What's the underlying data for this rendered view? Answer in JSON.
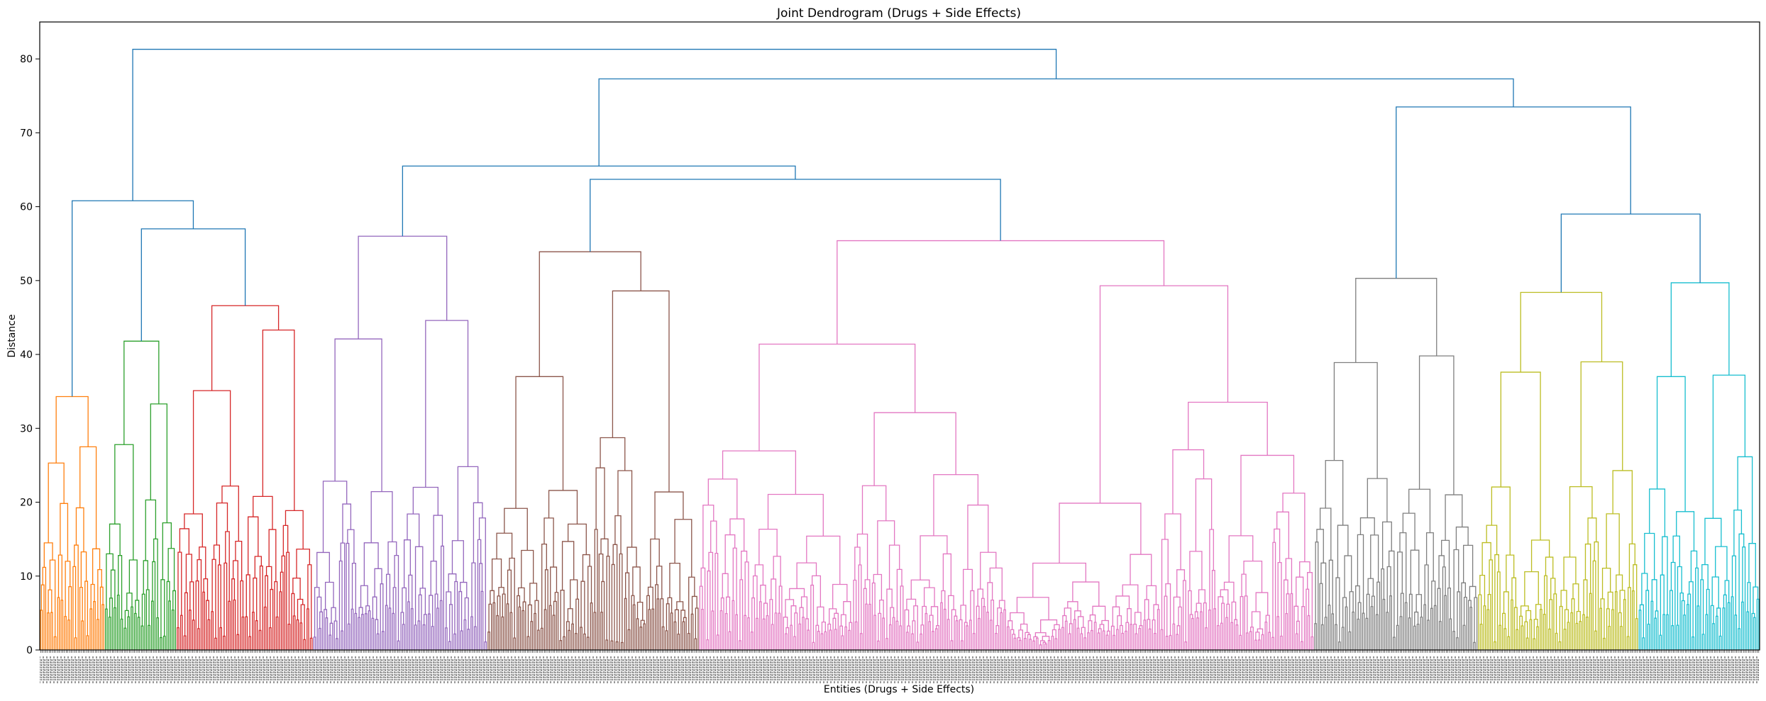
{
  "chart_data": {
    "type": "dendrogram",
    "title": "Joint Dendrogram (Drugs + Side Effects)",
    "xlabel": "Entities (Drugs + Side Effects)",
    "ylabel": "Distance",
    "ylim": [
      0,
      85
    ],
    "yticks": [
      0,
      10,
      20,
      30,
      40,
      50,
      60,
      70,
      80
    ],
    "grid": false,
    "legend": "none",
    "link_color_above_threshold": "#1f77b4",
    "clusters": [
      {
        "color": "#ff7f0e",
        "leaf_start": 0,
        "leaf_end": 38,
        "root_height": 34.3,
        "inner_splits": [
          [
            25.3,
            27.5
          ],
          [
            18.6,
            24.6,
            23.0,
            24.8
          ]
        ]
      },
      {
        "color": "#2ca02c",
        "leaf_start": 38,
        "leaf_end": 80,
        "root_height": 41.8,
        "inner_splits": [
          [
            27.8,
            33.3
          ],
          [
            23.3,
            18.5,
            23.3,
            20.0
          ]
        ]
      },
      {
        "color": "#d62728",
        "leaf_start": 80,
        "leaf_end": 160,
        "root_height": 46.6,
        "inner_splits": [
          [
            35.1,
            43.3
          ],
          [
            28.9,
            25.1,
            31.3,
            34.2
          ]
        ]
      },
      {
        "color": "#9467bd",
        "leaf_start": 160,
        "leaf_end": 262,
        "root_height": 56.0,
        "inner_splits": [
          [
            42.1,
            44.6
          ],
          [
            30.5,
            26.3,
            30.2,
            31.7
          ]
        ]
      },
      {
        "color": "#8c564b",
        "leaf_start": 262,
        "leaf_end": 386,
        "root_height": 53.9,
        "inner_splits": [
          [
            37.0,
            48.6
          ],
          [
            32.3,
            37.4,
            44.4,
            33.1
          ]
        ]
      },
      {
        "color": "#e377c2",
        "leaf_start": 386,
        "leaf_end": 746,
        "root_height": 55.4,
        "inner_splits": [
          [
            41.4,
            49.3
          ],
          [
            37.0,
            43.2,
            30.2,
            40.3
          ]
        ]
      },
      {
        "color": "#7f7f7f",
        "leaf_start": 746,
        "leaf_end": 842,
        "root_height": 50.3,
        "inner_splits": [
          [
            38.9,
            39.8
          ],
          [
            32.6,
            26.0,
            31.4,
            27.8
          ]
        ]
      },
      {
        "color": "#bcbd22",
        "leaf_start": 842,
        "leaf_end": 936,
        "root_height": 48.4,
        "inner_splits": [
          [
            37.6,
            39.0
          ],
          [
            31.5,
            25.6,
            32.4,
            33.3
          ]
        ]
      },
      {
        "color": "#17becf",
        "leaf_start": 936,
        "leaf_end": 1007,
        "root_height": 49.7,
        "inner_splits": [
          [
            37.0,
            37.2
          ],
          [
            25.1,
            25.5,
            28.3,
            30.7
          ]
        ]
      }
    ],
    "upper_links": [
      {
        "left": "C0",
        "right": "C1C2",
        "height": 60.8
      },
      {
        "left": "C1",
        "right": "C2",
        "height": 57.0
      },
      {
        "left": "C3",
        "right": "C4C5",
        "height": 65.5
      },
      {
        "left": "C4",
        "right": "C5",
        "height": 63.7
      },
      {
        "left": "C7",
        "right": "C8",
        "height": 59.0
      },
      {
        "left": "C6",
        "right": "C7C8",
        "height": 73.5
      },
      {
        "left": "C3C4C5",
        "right": "C6C7C8",
        "height": 77.3
      },
      {
        "left": "C0C1C2",
        "right": "C3-C8",
        "height": 81.3
      }
    ],
    "leaf_count": 1007,
    "leaf_labels": "unreadable (overlapping, rotated)"
  }
}
